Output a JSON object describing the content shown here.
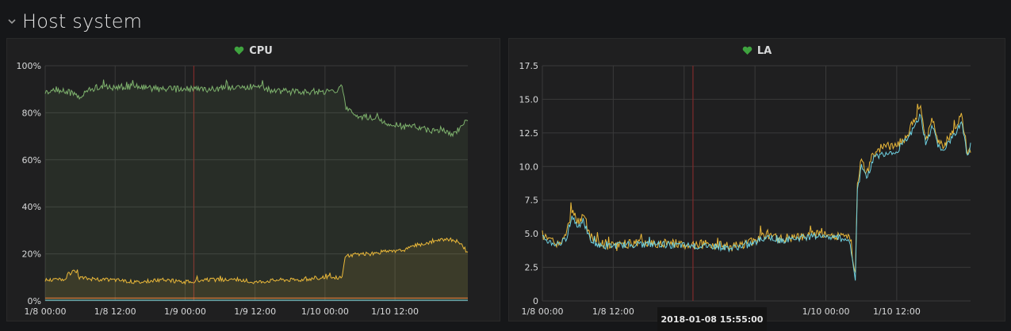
{
  "row": {
    "title": "Host system",
    "collapse_icon": "chevron-down-icon"
  },
  "panels": [
    {
      "title": "CPU",
      "status_icon": "heart-icon"
    },
    {
      "title": "LA",
      "status_icon": "heart-icon"
    }
  ],
  "colors": {
    "background": "#161719",
    "panel": "#1f1f20",
    "grid": "#3a3a3a",
    "green": "#7eb26d",
    "yellow": "#eab839",
    "cyan": "#6ed0e0",
    "orange": "#ef843c",
    "annotation": "#7f2b2b",
    "heart": "#3fa33f"
  },
  "tooltip": {
    "text": "2018-01-08 15:55:00"
  },
  "chart_data": [
    {
      "type": "area",
      "title": "CPU",
      "y_ticks": [
        "0%",
        "20%",
        "40%",
        "60%",
        "80%",
        "100%"
      ],
      "ylim": [
        0,
        100
      ],
      "x_ticks": [
        "1/8 00:00",
        "1/8 12:00",
        "1/9 00:00",
        "1/9 12:00",
        "1/10 00:00",
        "1/10 12:00"
      ],
      "x_tick_hours": [
        0,
        12,
        24,
        36,
        48,
        60
      ],
      "xlim_hours": [
        0,
        72.5
      ],
      "annotation_hour": 25.5,
      "grid": true,
      "series": [
        {
          "color": "green",
          "fill": true,
          "noise": 1.4,
          "points": [
            [
              0,
              89
            ],
            [
              2,
              90
            ],
            [
              5,
              88
            ],
            [
              6,
              86
            ],
            [
              7,
              89
            ],
            [
              9,
              91
            ],
            [
              12,
              91
            ],
            [
              16,
              91
            ],
            [
              20,
              90
            ],
            [
              24,
              90
            ],
            [
              28,
              90
            ],
            [
              32,
              91
            ],
            [
              36,
              91
            ],
            [
              40,
              89
            ],
            [
              44,
              89
            ],
            [
              48,
              89
            ],
            [
              50,
              89
            ],
            [
              51,
              91
            ],
            [
              51.5,
              82
            ],
            [
              53,
              79
            ],
            [
              56,
              78
            ],
            [
              58,
              76
            ],
            [
              60,
              75
            ],
            [
              62,
              74
            ],
            [
              64,
              74
            ],
            [
              66,
              72
            ],
            [
              68,
              73
            ],
            [
              70,
              71
            ],
            [
              71,
              73
            ],
            [
              72,
              77
            ],
            [
              72.5,
              76
            ]
          ]
        },
        {
          "color": "yellow",
          "fill": true,
          "noise": 0.8,
          "points": [
            [
              0,
              9
            ],
            [
              3,
              9
            ],
            [
              4,
              11
            ],
            [
              5,
              13
            ],
            [
              6,
              10
            ],
            [
              9,
              9
            ],
            [
              12,
              9
            ],
            [
              16,
              8
            ],
            [
              20,
              9
            ],
            [
              24,
              8
            ],
            [
              28,
              9
            ],
            [
              32,
              9
            ],
            [
              36,
              8
            ],
            [
              40,
              9
            ],
            [
              44,
              9
            ],
            [
              48,
              10
            ],
            [
              50,
              10
            ],
            [
              51,
              10
            ],
            [
              51.2,
              15
            ],
            [
              51.5,
              19
            ],
            [
              54,
              20
            ],
            [
              56,
              20
            ],
            [
              58,
              21
            ],
            [
              60,
              21
            ],
            [
              62,
              22
            ],
            [
              64,
              24
            ],
            [
              66,
              25
            ],
            [
              68,
              26
            ],
            [
              70,
              26
            ],
            [
              71,
              25
            ],
            [
              72,
              22
            ],
            [
              72.5,
              20
            ]
          ]
        },
        {
          "color": "orange",
          "fill": false,
          "noise": 0,
          "points": [
            [
              0,
              1.2
            ],
            [
              72.5,
              1.2
            ]
          ]
        },
        {
          "color": "cyan",
          "fill": false,
          "noise": 0,
          "points": [
            [
              0,
              0.3
            ],
            [
              72.5,
              0.3
            ]
          ]
        }
      ]
    },
    {
      "type": "line",
      "title": "LA",
      "y_ticks": [
        "0",
        "2.5",
        "5.0",
        "7.5",
        "10.0",
        "12.5",
        "15.0",
        "17.5"
      ],
      "ylim": [
        0,
        17.5
      ],
      "x_ticks": [
        "1/8 00:00",
        "1/8 12:00",
        "1/10 00:00",
        "1/10 12:00"
      ],
      "x_tick_hours": [
        0,
        12,
        48,
        60
      ],
      "x_grid_hours": [
        0,
        12,
        24,
        36,
        48,
        60
      ],
      "xlim_hours": [
        0,
        72.5
      ],
      "annotation_hour": 25.5,
      "grid": true,
      "series": [
        {
          "color": "yellow",
          "fill": false,
          "noise": 0.35,
          "points": [
            [
              0,
              5
            ],
            [
              1,
              4.5
            ],
            [
              3,
              4.2
            ],
            [
              4,
              4.8
            ],
            [
              5,
              6.8
            ],
            [
              6,
              5.8
            ],
            [
              7,
              6.5
            ],
            [
              8,
              4.8
            ],
            [
              10,
              4.2
            ],
            [
              12,
              4.2
            ],
            [
              16,
              4.3
            ],
            [
              20,
              4.3
            ],
            [
              24,
              4.2
            ],
            [
              28,
              4.2
            ],
            [
              32,
              4.0
            ],
            [
              36,
              4.5
            ],
            [
              38,
              5.0
            ],
            [
              40,
              4.6
            ],
            [
              44,
              4.8
            ],
            [
              46,
              5.0
            ],
            [
              48,
              5.0
            ],
            [
              50,
              4.8
            ],
            [
              52,
              4.7
            ],
            [
              53,
              2.2
            ],
            [
              53.3,
              8.5
            ],
            [
              54,
              10.5
            ],
            [
              55,
              9.5
            ],
            [
              56,
              11
            ],
            [
              58,
              11.5
            ],
            [
              60,
              11.5
            ],
            [
              62,
              12.5
            ],
            [
              64,
              14.5
            ],
            [
              65,
              12.0
            ],
            [
              66,
              13.5
            ],
            [
              67,
              12.0
            ],
            [
              68,
              11.5
            ],
            [
              70,
              13.0
            ],
            [
              71,
              13.8
            ],
            [
              72,
              11.0
            ],
            [
              72.5,
              11.5
            ]
          ]
        },
        {
          "color": "cyan",
          "fill": false,
          "noise": 0.25,
          "points": [
            [
              0,
              4.8
            ],
            [
              1,
              4.4
            ],
            [
              3,
              4.1
            ],
            [
              4,
              4.6
            ],
            [
              5,
              6.3
            ],
            [
              6,
              5.5
            ],
            [
              7,
              6.1
            ],
            [
              8,
              4.6
            ],
            [
              10,
              4.0
            ],
            [
              12,
              4.1
            ],
            [
              16,
              4.2
            ],
            [
              20,
              4.2
            ],
            [
              24,
              4.1
            ],
            [
              28,
              4.1
            ],
            [
              32,
              3.9
            ],
            [
              36,
              4.3
            ],
            [
              38,
              4.8
            ],
            [
              40,
              4.5
            ],
            [
              44,
              4.7
            ],
            [
              46,
              4.8
            ],
            [
              48,
              4.9
            ],
            [
              50,
              4.7
            ],
            [
              52,
              4.5
            ],
            [
              53,
              1.6
            ],
            [
              53.3,
              8.0
            ],
            [
              54,
              10.0
            ],
            [
              55,
              9.2
            ],
            [
              56,
              10.6
            ],
            [
              58,
              11.0
            ],
            [
              60,
              11.2
            ],
            [
              62,
              12.1
            ],
            [
              64,
              13.8
            ],
            [
              65,
              11.6
            ],
            [
              66,
              13.0
            ],
            [
              67,
              11.6
            ],
            [
              68,
              11.2
            ],
            [
              70,
              12.6
            ],
            [
              71,
              13.2
            ],
            [
              72,
              10.6
            ],
            [
              72.5,
              11.2
            ]
          ]
        }
      ]
    }
  ]
}
